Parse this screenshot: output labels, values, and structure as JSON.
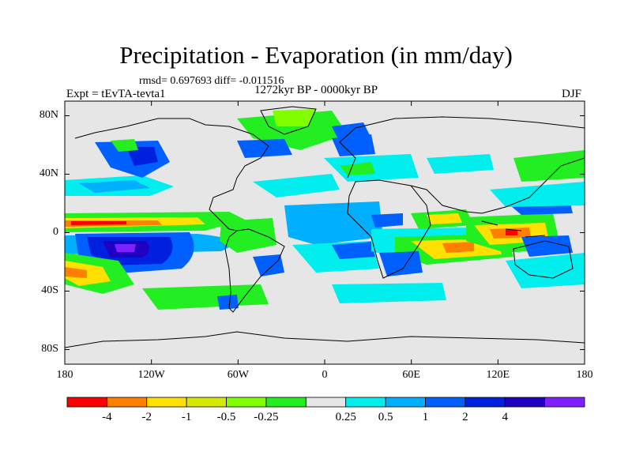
{
  "title": "Precipitation - Evaporation (in mm/day)",
  "stats": "rmsd= 0.697693 diff= -0.011516",
  "period": "1272kyr BP - 0000kyr BP",
  "experiment": "Expt = tEvTA-tevta1",
  "season": "DJF",
  "map": {
    "projection": "cylindrical equidistant",
    "lon_range": [
      -180,
      180
    ],
    "lat_range": [
      -90,
      90
    ],
    "lat_ticks": [
      {
        "value": 80,
        "label": "80N"
      },
      {
        "value": 40,
        "label": "40N"
      },
      {
        "value": 0,
        "label": "0"
      },
      {
        "value": -40,
        "label": "40S"
      },
      {
        "value": -80,
        "label": "80S"
      }
    ],
    "lon_ticks": [
      {
        "value": -180,
        "label": "180"
      },
      {
        "value": -120,
        "label": "120W"
      },
      {
        "value": -60,
        "label": "60W"
      },
      {
        "value": 0,
        "label": "0"
      },
      {
        "value": 60,
        "label": "60E"
      },
      {
        "value": 120,
        "label": "120E"
      },
      {
        "value": 180,
        "label": "180"
      }
    ]
  },
  "colorbar": {
    "colors": [
      "#ff0000",
      "#ff8000",
      "#ffe000",
      "#d4e800",
      "#80ff00",
      "#22ee22",
      "#e6e6e6",
      "#00eeee",
      "#00b0ff",
      "#0060ff",
      "#0020e0",
      "#2000c0",
      "#8020ff"
    ],
    "labels": [
      "-4",
      "-2",
      "-1",
      "-0.5",
      "-0.25",
      "0.25",
      "0.5",
      "1",
      "2",
      "4"
    ],
    "label_positions": [
      0,
      1,
      2,
      3,
      4,
      6,
      7,
      8,
      9,
      10
    ]
  }
}
